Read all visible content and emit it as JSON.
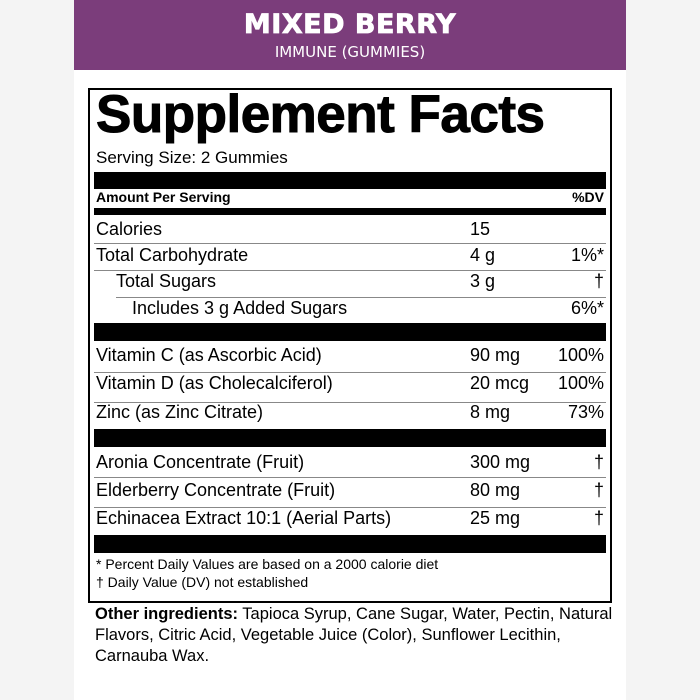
{
  "header": {
    "brand": "MIXED BERRY",
    "subtitle": "IMMUNE (GUMMIES)",
    "color": "#7b3d7b"
  },
  "label": {
    "title": "Supplement Facts",
    "serving_size": "Serving Size: 2 Gummies",
    "col_amount_per_serving": "Amount Per Serving",
    "col_dv": "%DV",
    "rows": [
      {
        "name": "Calories",
        "amount": "15",
        "dv": ""
      },
      {
        "name": "Total Carbohydrate",
        "amount": "4 g",
        "dv": "1%*"
      },
      {
        "name": "Total Sugars",
        "amount": "3 g",
        "dv": "†"
      },
      {
        "name": "Includes 3 g Added Sugars",
        "amount": "",
        "dv": "6%*"
      },
      {
        "name": "Vitamin C (as Ascorbic Acid)",
        "amount": "90 mg",
        "dv": "100%"
      },
      {
        "name": "Vitamin D (as Cholecalciferol)",
        "amount": "20 mcg",
        "dv": "100%"
      },
      {
        "name": "Zinc (as Zinc Citrate)",
        "amount": "8 mg",
        "dv": "73%"
      },
      {
        "name": "Aronia Concentrate (Fruit)",
        "amount": "300 mg",
        "dv": "†"
      },
      {
        "name": "Elderberry Concentrate (Fruit)",
        "amount": "80 mg",
        "dv": "†"
      },
      {
        "name": "Echinacea Extract 10:1 (Aerial Parts)",
        "amount": "25 mg",
        "dv": "†"
      }
    ],
    "footnotes": [
      "* Percent Daily Values are based on a 2000 calorie diet",
      "† Daily Value (DV) not established"
    ]
  },
  "other_ingredients": {
    "label": "Other ingredients:",
    "text": " Tapioca Syrup, Cane Sugar, Water, Pectin, Natural Flavors, Citric Acid, Vegetable Juice (Color), Sunflower Lecithin, Carnauba Wax."
  }
}
